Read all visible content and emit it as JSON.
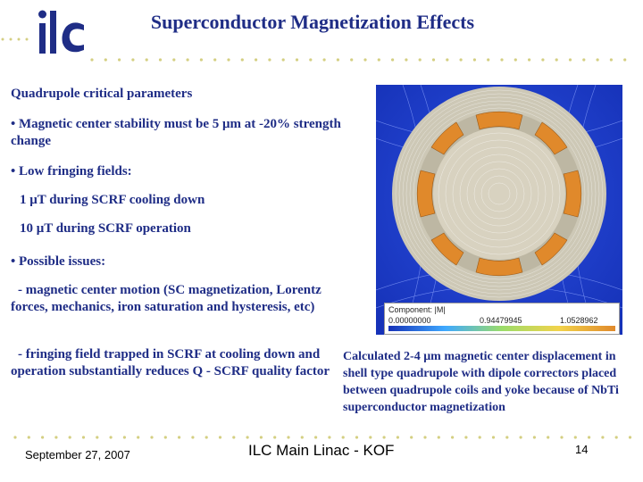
{
  "header": {
    "logo_text": "ilc",
    "title": "Superconductor Magnetization Effects"
  },
  "body": {
    "heading": "Quadrupole critical parameters",
    "bullet1": "• Magnetic center stability must be 5 μm at -20% strength  change",
    "bullet2": "• Low fringing fields:",
    "line_cooling": "1 μT during SCRF cooling down",
    "line_operation": "10 μT during SCRF operation",
    "bullet3": "• Possible issues:",
    "issue1": "- magnetic center motion (SC magnetization, Lorentz forces, mechanics, iron saturation and hysteresis, etc)",
    "issue2": "- fringing field trapped in SCRF at cooling down and operation substantially reduces Q - SCRF quality factor"
  },
  "figure": {
    "legend_title": "Component: |M|",
    "legend_min": "0.00000000",
    "legend_mid": "0.94479945",
    "legend_max": "1.0528962",
    "caption": "Calculated 2-4 μm magnetic center displacement in shell type quadrupole with dipole correctors placed between quadrupole coils and yoke because of NbTi superconductor magnetization"
  },
  "footer": {
    "date": "September 27, 2007",
    "center": "ILC Main Linac - KOF",
    "page": "14"
  },
  "colors": {
    "title": "#1f2d86",
    "dots": "#d4cf82",
    "field_bg": "#1f3fd1",
    "ring": "#c9c6b8",
    "coil": "#e0892b"
  }
}
